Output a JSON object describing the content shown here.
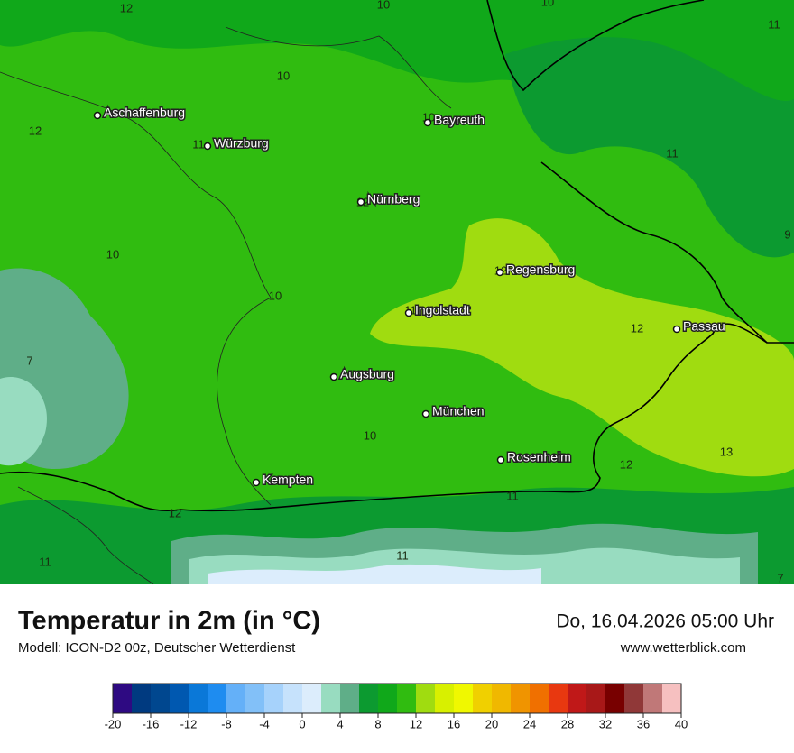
{
  "map": {
    "cities": [
      "Aschaffenburg",
      "Bayreuth",
      "Würzburg",
      "Nürnberg",
      "Regensburg",
      "Ingolstadt",
      "Passau",
      "Augsburg",
      "München",
      "Rosenheim",
      "Kempten"
    ],
    "isolines": [
      "12",
      "10",
      "10",
      "11",
      "10",
      "12",
      "11",
      "10",
      "11",
      "12",
      "10",
      "9",
      "12",
      "10",
      "11",
      "12",
      "7",
      "10",
      "13",
      "12",
      "11",
      "12",
      "11",
      "11",
      "7"
    ]
  },
  "footer": {
    "title": "Temperatur in 2m (in °C)",
    "subtitle": "Modell: ICON-D2 00z, Deutscher Wetterdienst",
    "datetime": "Do, 16.04.2026 05:00 Uhr",
    "website": "www.wetterblick.com"
  },
  "legend": {
    "colors": [
      "#2e0a82",
      "#003a80",
      "#00478f",
      "#0058b0",
      "#0a78d8",
      "#1e8cf0",
      "#64b0f8",
      "#82c0f8",
      "#a6d2fb",
      "#c6e2fc",
      "#dcedfc",
      "#98dcc0",
      "#5fae88",
      "#0c9a30",
      "#10a81a",
      "#30bc10",
      "#a0dc10",
      "#d8f000",
      "#f0f800",
      "#f0d000",
      "#f0b800",
      "#f09400",
      "#f07000",
      "#e83810",
      "#c01818",
      "#a81818",
      "#780000",
      "#903838",
      "#c07878",
      "#f6c0c0"
    ],
    "ticks": [
      -20,
      -16,
      -12,
      -8,
      -4,
      0,
      4,
      8,
      12,
      16,
      20,
      24,
      28,
      32,
      36,
      40
    ]
  }
}
